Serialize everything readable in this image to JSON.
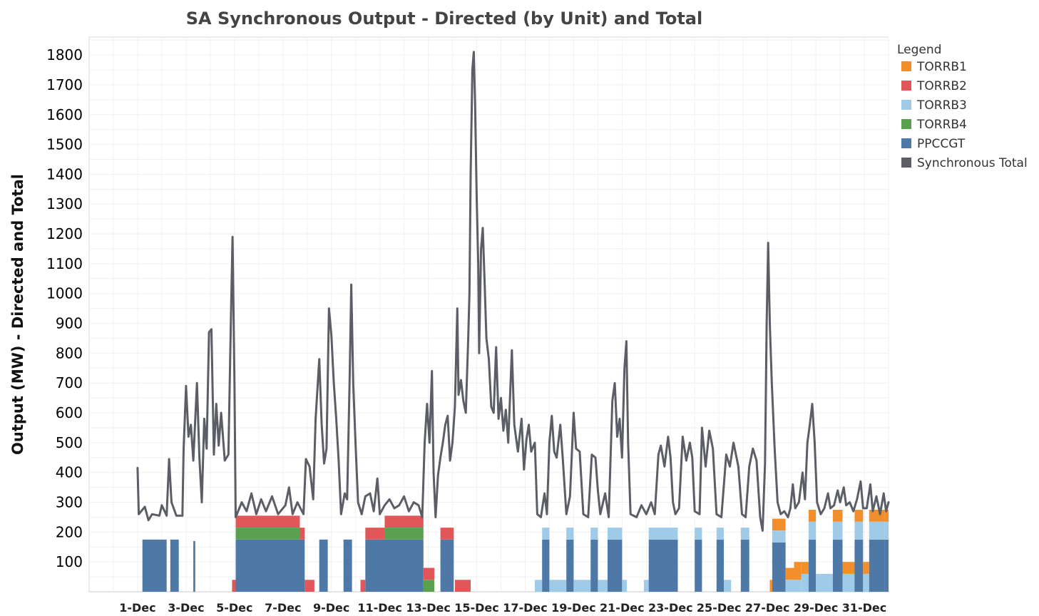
{
  "chart_data": {
    "type": "area",
    "title": "SA Synchronous Output - Directed (by Unit) and Total",
    "ylabel": "Output (MW) - Directed and Total",
    "xlabel": "",
    "ylim": [
      0,
      1860
    ],
    "yticks": [
      100,
      200,
      300,
      400,
      500,
      600,
      700,
      800,
      900,
      1000,
      1100,
      1200,
      1300,
      1400,
      1500,
      1600,
      1700,
      1800
    ],
    "xlim": [
      -1,
      32
    ],
    "xticks": [
      {
        "day": 1,
        "label": "1-Dec"
      },
      {
        "day": 3,
        "label": "3-Dec"
      },
      {
        "day": 5,
        "label": "5-Dec"
      },
      {
        "day": 7,
        "label": "7-Dec"
      },
      {
        "day": 9,
        "label": "9-Dec"
      },
      {
        "day": 11,
        "label": "11-Dec"
      },
      {
        "day": 13,
        "label": "13-Dec"
      },
      {
        "day": 15,
        "label": "15-Dec"
      },
      {
        "day": 17,
        "label": "17-Dec"
      },
      {
        "day": 19,
        "label": "19-Dec"
      },
      {
        "day": 21,
        "label": "21-Dec"
      },
      {
        "day": 23,
        "label": "23-Dec"
      },
      {
        "day": 25,
        "label": "25-Dec"
      },
      {
        "day": 27,
        "label": "27-Dec"
      },
      {
        "day": 29,
        "label": "29-Dec"
      },
      {
        "day": 31,
        "label": "31-Dec"
      }
    ],
    "grid": true,
    "legend": {
      "title": "Legend",
      "placement": "right",
      "entries": [
        {
          "name": "TORRB1",
          "color": "#f28e2b"
        },
        {
          "name": "TORRB2",
          "color": "#e15759"
        },
        {
          "name": "TORRB3",
          "color": "#a0cbe8"
        },
        {
          "name": "TORRB4",
          "color": "#59a14f"
        },
        {
          "name": "PPCCGT",
          "color": "#4e79a7"
        },
        {
          "name": "Synchronous Total",
          "color": "#5b5e66"
        }
      ]
    },
    "directed_blocks": [
      {
        "start": 1.2,
        "end": 2.2,
        "PPCCGT": 175
      },
      {
        "start": 2.35,
        "end": 2.7,
        "PPCCGT": 175
      },
      {
        "start": 3.3,
        "end": 3.38,
        "PPCCGT": 170
      },
      {
        "start": 4.9,
        "end": 5.05,
        "TORRB2": 40
      },
      {
        "start": 5.05,
        "end": 7.7,
        "PPCCGT": 175,
        "TORRB4": 40,
        "TORRB2": 40
      },
      {
        "start": 7.7,
        "end": 7.9,
        "PPCCGT": 175,
        "TORRB2": 40
      },
      {
        "start": 7.9,
        "end": 8.3,
        "TORRB2": 40
      },
      {
        "start": 8.5,
        "end": 8.85,
        "PPCCGT": 175
      },
      {
        "start": 9.5,
        "end": 9.85,
        "PPCCGT": 175
      },
      {
        "start": 10.2,
        "end": 10.4,
        "TORRB2": 40
      },
      {
        "start": 10.4,
        "end": 11.2,
        "PPCCGT": 175,
        "TORRB2": 40
      },
      {
        "start": 11.2,
        "end": 12.8,
        "PPCCGT": 175,
        "TORRB4": 40,
        "TORRB2": 40
      },
      {
        "start": 12.8,
        "end": 13.25,
        "TORRB4": 40,
        "TORRB2": 40
      },
      {
        "start": 13.5,
        "end": 14.05,
        "PPCCGT": 175,
        "TORRB2": 40
      },
      {
        "start": 14.1,
        "end": 14.75,
        "TORRB2": 40
      },
      {
        "start": 17.4,
        "end": 17.7,
        "TORRB3": 40
      },
      {
        "start": 17.7,
        "end": 18.0,
        "PPCCGT": 175,
        "TORRB3": 40
      },
      {
        "start": 18.0,
        "end": 18.7,
        "TORRB3": 40
      },
      {
        "start": 18.7,
        "end": 19.0,
        "PPCCGT": 175,
        "TORRB3": 40
      },
      {
        "start": 19.0,
        "end": 19.7,
        "TORRB3": 40
      },
      {
        "start": 19.7,
        "end": 20.0,
        "PPCCGT": 175,
        "TORRB3": 40
      },
      {
        "start": 20.0,
        "end": 20.4,
        "TORRB3": 40
      },
      {
        "start": 20.4,
        "end": 21.0,
        "PPCCGT": 175,
        "TORRB3": 40
      },
      {
        "start": 21.0,
        "end": 21.2,
        "TORRB3": 40
      },
      {
        "start": 21.9,
        "end": 22.1,
        "TORRB3": 40
      },
      {
        "start": 22.1,
        "end": 23.3,
        "PPCCGT": 175,
        "TORRB3": 40
      },
      {
        "start": 24.0,
        "end": 24.3,
        "PPCCGT": 175,
        "TORRB3": 40
      },
      {
        "start": 24.9,
        "end": 25.2,
        "PPCCGT": 175,
        "TORRB3": 40
      },
      {
        "start": 25.2,
        "end": 25.5,
        "TORRB3": 40
      },
      {
        "start": 25.9,
        "end": 26.25,
        "PPCCGT": 175,
        "TORRB3": 40
      },
      {
        "start": 27.1,
        "end": 27.2,
        "TORRB1": 40
      },
      {
        "start": 27.2,
        "end": 27.75,
        "PPCCGT": 165,
        "TORRB3": 40,
        "TORRB1": 40
      },
      {
        "start": 27.75,
        "end": 28.1,
        "TORRB3": 40,
        "TORRB1": 40
      },
      {
        "start": 28.1,
        "end": 28.4,
        "TORRB3": 40,
        "TORRB1": 60
      },
      {
        "start": 28.4,
        "end": 28.7,
        "TORRB3": 60,
        "TORRB1": 40
      },
      {
        "start": 28.7,
        "end": 29.0,
        "PPCCGT": 175,
        "TORRB3": 60,
        "TORRB1": 40
      },
      {
        "start": 29.0,
        "end": 29.7,
        "TORRB3": 60
      },
      {
        "start": 29.7,
        "end": 30.1,
        "PPCCGT": 175,
        "TORRB3": 60,
        "TORRB1": 40
      },
      {
        "start": 30.1,
        "end": 30.6,
        "TORRB3": 60,
        "TORRB1": 40
      },
      {
        "start": 30.6,
        "end": 30.95,
        "PPCCGT": 175,
        "TORRB3": 60,
        "TORRB1": 40
      },
      {
        "start": 30.95,
        "end": 31.2,
        "TORRB3": 60,
        "TORRB1": 40
      },
      {
        "start": 31.2,
        "end": 31.85,
        "PPCCGT": 175,
        "TORRB3": 60,
        "TORRB1": 40
      },
      {
        "start": 31.85,
        "end": 32.0,
        "PPCCGT": 175,
        "TORRB3": 60,
        "TORRB1": 40
      }
    ],
    "total_series": [
      {
        "x": 1.0,
        "y": 415
      },
      {
        "x": 1.05,
        "y": 260
      },
      {
        "x": 1.3,
        "y": 285
      },
      {
        "x": 1.45,
        "y": 240
      },
      {
        "x": 1.6,
        "y": 260
      },
      {
        "x": 1.9,
        "y": 255
      },
      {
        "x": 2.0,
        "y": 290
      },
      {
        "x": 2.2,
        "y": 255
      },
      {
        "x": 2.3,
        "y": 445
      },
      {
        "x": 2.4,
        "y": 300
      },
      {
        "x": 2.6,
        "y": 255
      },
      {
        "x": 2.85,
        "y": 255
      },
      {
        "x": 2.9,
        "y": 480
      },
      {
        "x": 3.0,
        "y": 690
      },
      {
        "x": 3.1,
        "y": 520
      },
      {
        "x": 3.2,
        "y": 560
      },
      {
        "x": 3.3,
        "y": 440
      },
      {
        "x": 3.45,
        "y": 700
      },
      {
        "x": 3.55,
        "y": 450
      },
      {
        "x": 3.65,
        "y": 300
      },
      {
        "x": 3.75,
        "y": 580
      },
      {
        "x": 3.85,
        "y": 480
      },
      {
        "x": 3.95,
        "y": 870
      },
      {
        "x": 4.05,
        "y": 880
      },
      {
        "x": 4.15,
        "y": 460
      },
      {
        "x": 4.25,
        "y": 630
      },
      {
        "x": 4.35,
        "y": 490
      },
      {
        "x": 4.45,
        "y": 600
      },
      {
        "x": 4.6,
        "y": 440
      },
      {
        "x": 4.75,
        "y": 460
      },
      {
        "x": 4.85,
        "y": 900
      },
      {
        "x": 4.92,
        "y": 1190
      },
      {
        "x": 5.0,
        "y": 700
      },
      {
        "x": 5.05,
        "y": 250
      },
      {
        "x": 5.3,
        "y": 300
      },
      {
        "x": 5.5,
        "y": 270
      },
      {
        "x": 5.7,
        "y": 330
      },
      {
        "x": 5.9,
        "y": 260
      },
      {
        "x": 6.1,
        "y": 310
      },
      {
        "x": 6.3,
        "y": 270
      },
      {
        "x": 6.55,
        "y": 320
      },
      {
        "x": 6.8,
        "y": 260
      },
      {
        "x": 7.1,
        "y": 290
      },
      {
        "x": 7.25,
        "y": 350
      },
      {
        "x": 7.4,
        "y": 260
      },
      {
        "x": 7.6,
        "y": 300
      },
      {
        "x": 7.85,
        "y": 260
      },
      {
        "x": 7.95,
        "y": 445
      },
      {
        "x": 8.1,
        "y": 420
      },
      {
        "x": 8.25,
        "y": 310
      },
      {
        "x": 8.35,
        "y": 580
      },
      {
        "x": 8.5,
        "y": 780
      },
      {
        "x": 8.6,
        "y": 560
      },
      {
        "x": 8.7,
        "y": 430
      },
      {
        "x": 8.8,
        "y": 480
      },
      {
        "x": 8.9,
        "y": 950
      },
      {
        "x": 9.0,
        "y": 860
      },
      {
        "x": 9.1,
        "y": 700
      },
      {
        "x": 9.2,
        "y": 580
      },
      {
        "x": 9.3,
        "y": 440
      },
      {
        "x": 9.4,
        "y": 260
      },
      {
        "x": 9.55,
        "y": 330
      },
      {
        "x": 9.65,
        "y": 310
      },
      {
        "x": 9.75,
        "y": 700
      },
      {
        "x": 9.82,
        "y": 1030
      },
      {
        "x": 9.9,
        "y": 700
      },
      {
        "x": 10.0,
        "y": 490
      },
      {
        "x": 10.1,
        "y": 300
      },
      {
        "x": 10.25,
        "y": 260
      },
      {
        "x": 10.4,
        "y": 320
      },
      {
        "x": 10.6,
        "y": 330
      },
      {
        "x": 10.75,
        "y": 270
      },
      {
        "x": 10.9,
        "y": 380
      },
      {
        "x": 11.0,
        "y": 260
      },
      {
        "x": 11.2,
        "y": 290
      },
      {
        "x": 11.4,
        "y": 310
      },
      {
        "x": 11.6,
        "y": 280
      },
      {
        "x": 11.8,
        "y": 290
      },
      {
        "x": 12.0,
        "y": 320
      },
      {
        "x": 12.2,
        "y": 270
      },
      {
        "x": 12.4,
        "y": 300
      },
      {
        "x": 12.6,
        "y": 290
      },
      {
        "x": 12.75,
        "y": 250
      },
      {
        "x": 12.85,
        "y": 500
      },
      {
        "x": 12.95,
        "y": 630
      },
      {
        "x": 13.05,
        "y": 500
      },
      {
        "x": 13.15,
        "y": 740
      },
      {
        "x": 13.22,
        "y": 400
      },
      {
        "x": 13.3,
        "y": 250
      },
      {
        "x": 13.4,
        "y": 390
      },
      {
        "x": 13.5,
        "y": 450
      },
      {
        "x": 13.6,
        "y": 500
      },
      {
        "x": 13.7,
        "y": 560
      },
      {
        "x": 13.8,
        "y": 590
      },
      {
        "x": 13.9,
        "y": 440
      },
      {
        "x": 14.0,
        "y": 500
      },
      {
        "x": 14.1,
        "y": 620
      },
      {
        "x": 14.2,
        "y": 950
      },
      {
        "x": 14.25,
        "y": 660
      },
      {
        "x": 14.35,
        "y": 710
      },
      {
        "x": 14.45,
        "y": 640
      },
      {
        "x": 14.55,
        "y": 600
      },
      {
        "x": 14.65,
        "y": 850
      },
      {
        "x": 14.7,
        "y": 1000
      },
      {
        "x": 14.75,
        "y": 1400
      },
      {
        "x": 14.82,
        "y": 1750
      },
      {
        "x": 14.88,
        "y": 1810
      },
      {
        "x": 14.93,
        "y": 1650
      },
      {
        "x": 15.0,
        "y": 1320
      },
      {
        "x": 15.06,
        "y": 1100
      },
      {
        "x": 15.1,
        "y": 800
      },
      {
        "x": 15.18,
        "y": 1150
      },
      {
        "x": 15.25,
        "y": 1220
      },
      {
        "x": 15.32,
        "y": 1050
      },
      {
        "x": 15.4,
        "y": 850
      },
      {
        "x": 15.5,
        "y": 780
      },
      {
        "x": 15.6,
        "y": 620
      },
      {
        "x": 15.7,
        "y": 600
      },
      {
        "x": 15.8,
        "y": 820
      },
      {
        "x": 15.9,
        "y": 580
      },
      {
        "x": 16.0,
        "y": 650
      },
      {
        "x": 16.1,
        "y": 540
      },
      {
        "x": 16.2,
        "y": 610
      },
      {
        "x": 16.3,
        "y": 500
      },
      {
        "x": 16.45,
        "y": 810
      },
      {
        "x": 16.55,
        "y": 560
      },
      {
        "x": 16.7,
        "y": 470
      },
      {
        "x": 16.85,
        "y": 580
      },
      {
        "x": 16.95,
        "y": 410
      },
      {
        "x": 17.05,
        "y": 510
      },
      {
        "x": 17.15,
        "y": 560
      },
      {
        "x": 17.25,
        "y": 470
      },
      {
        "x": 17.4,
        "y": 500
      },
      {
        "x": 17.5,
        "y": 260
      },
      {
        "x": 17.65,
        "y": 250
      },
      {
        "x": 17.8,
        "y": 330
      },
      {
        "x": 17.9,
        "y": 260
      },
      {
        "x": 18.0,
        "y": 500
      },
      {
        "x": 18.1,
        "y": 590
      },
      {
        "x": 18.2,
        "y": 470
      },
      {
        "x": 18.3,
        "y": 450
      },
      {
        "x": 18.45,
        "y": 560
      },
      {
        "x": 18.55,
        "y": 450
      },
      {
        "x": 18.7,
        "y": 260
      },
      {
        "x": 18.85,
        "y": 320
      },
      {
        "x": 19.0,
        "y": 600
      },
      {
        "x": 19.1,
        "y": 480
      },
      {
        "x": 19.25,
        "y": 470
      },
      {
        "x": 19.4,
        "y": 260
      },
      {
        "x": 19.6,
        "y": 250
      },
      {
        "x": 19.75,
        "y": 460
      },
      {
        "x": 19.9,
        "y": 450
      },
      {
        "x": 20.0,
        "y": 340
      },
      {
        "x": 20.1,
        "y": 260
      },
      {
        "x": 20.3,
        "y": 330
      },
      {
        "x": 20.45,
        "y": 250
      },
      {
        "x": 20.6,
        "y": 640
      },
      {
        "x": 20.7,
        "y": 700
      },
      {
        "x": 20.8,
        "y": 520
      },
      {
        "x": 20.9,
        "y": 580
      },
      {
        "x": 21.0,
        "y": 450
      },
      {
        "x": 21.1,
        "y": 750
      },
      {
        "x": 21.18,
        "y": 840
      },
      {
        "x": 21.25,
        "y": 500
      },
      {
        "x": 21.35,
        "y": 260
      },
      {
        "x": 21.6,
        "y": 250
      },
      {
        "x": 21.8,
        "y": 290
      },
      {
        "x": 22.0,
        "y": 260
      },
      {
        "x": 22.2,
        "y": 300
      },
      {
        "x": 22.35,
        "y": 260
      },
      {
        "x": 22.5,
        "y": 460
      },
      {
        "x": 22.6,
        "y": 490
      },
      {
        "x": 22.75,
        "y": 420
      },
      {
        "x": 22.9,
        "y": 520
      },
      {
        "x": 23.0,
        "y": 450
      },
      {
        "x": 23.1,
        "y": 300
      },
      {
        "x": 23.2,
        "y": 260
      },
      {
        "x": 23.35,
        "y": 280
      },
      {
        "x": 23.5,
        "y": 520
      },
      {
        "x": 23.65,
        "y": 440
      },
      {
        "x": 23.8,
        "y": 500
      },
      {
        "x": 23.9,
        "y": 450
      },
      {
        "x": 24.0,
        "y": 270
      },
      {
        "x": 24.2,
        "y": 260
      },
      {
        "x": 24.3,
        "y": 550
      },
      {
        "x": 24.45,
        "y": 420
      },
      {
        "x": 24.6,
        "y": 540
      },
      {
        "x": 24.75,
        "y": 480
      },
      {
        "x": 24.9,
        "y": 260
      },
      {
        "x": 25.1,
        "y": 250
      },
      {
        "x": 25.3,
        "y": 460
      },
      {
        "x": 25.45,
        "y": 420
      },
      {
        "x": 25.6,
        "y": 500
      },
      {
        "x": 25.8,
        "y": 420
      },
      {
        "x": 25.95,
        "y": 260
      },
      {
        "x": 26.1,
        "y": 250
      },
      {
        "x": 26.25,
        "y": 420
      },
      {
        "x": 26.4,
        "y": 480
      },
      {
        "x": 26.55,
        "y": 440
      },
      {
        "x": 26.7,
        "y": 250
      },
      {
        "x": 26.8,
        "y": 205
      },
      {
        "x": 26.9,
        "y": 430
      },
      {
        "x": 26.97,
        "y": 900
      },
      {
        "x": 27.03,
        "y": 1170
      },
      {
        "x": 27.1,
        "y": 900
      },
      {
        "x": 27.18,
        "y": 700
      },
      {
        "x": 27.3,
        "y": 480
      },
      {
        "x": 27.42,
        "y": 300
      },
      {
        "x": 27.55,
        "y": 260
      },
      {
        "x": 27.7,
        "y": 270
      },
      {
        "x": 27.85,
        "y": 250
      },
      {
        "x": 27.95,
        "y": 280
      },
      {
        "x": 28.05,
        "y": 360
      },
      {
        "x": 28.15,
        "y": 280
      },
      {
        "x": 28.3,
        "y": 300
      },
      {
        "x": 28.45,
        "y": 400
      },
      {
        "x": 28.55,
        "y": 310
      },
      {
        "x": 28.65,
        "y": 500
      },
      {
        "x": 28.75,
        "y": 560
      },
      {
        "x": 28.85,
        "y": 630
      },
      {
        "x": 28.95,
        "y": 500
      },
      {
        "x": 29.05,
        "y": 300
      },
      {
        "x": 29.2,
        "y": 260
      },
      {
        "x": 29.35,
        "y": 280
      },
      {
        "x": 29.5,
        "y": 330
      },
      {
        "x": 29.6,
        "y": 280
      },
      {
        "x": 29.75,
        "y": 290
      },
      {
        "x": 29.9,
        "y": 340
      },
      {
        "x": 30.0,
        "y": 300
      },
      {
        "x": 30.15,
        "y": 350
      },
      {
        "x": 30.25,
        "y": 290
      },
      {
        "x": 30.4,
        "y": 300
      },
      {
        "x": 30.55,
        "y": 270
      },
      {
        "x": 30.7,
        "y": 310
      },
      {
        "x": 30.85,
        "y": 370
      },
      {
        "x": 30.95,
        "y": 280
      },
      {
        "x": 31.1,
        "y": 280
      },
      {
        "x": 31.25,
        "y": 360
      },
      {
        "x": 31.35,
        "y": 270
      },
      {
        "x": 31.5,
        "y": 320
      },
      {
        "x": 31.65,
        "y": 260
      },
      {
        "x": 31.8,
        "y": 330
      },
      {
        "x": 31.9,
        "y": 270
      },
      {
        "x": 32.0,
        "y": 300
      }
    ]
  }
}
